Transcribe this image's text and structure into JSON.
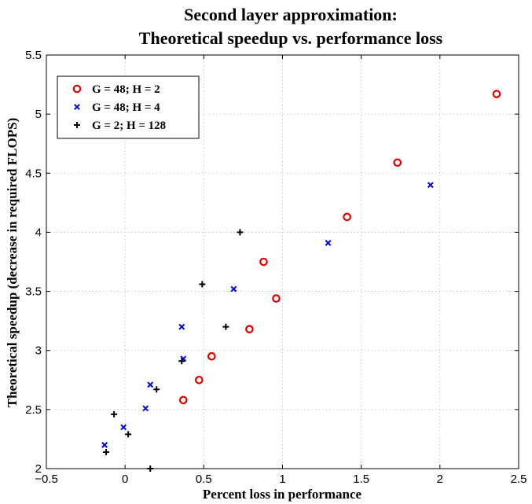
{
  "chart_data": {
    "type": "scatter",
    "title": [
      "Second layer approximation:",
      "Theoretical speedup vs. performance loss"
    ],
    "xlabel": "Percent loss in performance",
    "ylabel": "Theoretical speedup (decrease in required FLOPS)",
    "xlim": [
      -0.5,
      2.5
    ],
    "ylim": [
      2,
      5.5
    ],
    "xticks": [
      -0.5,
      0,
      0.5,
      1,
      1.5,
      2,
      2.5
    ],
    "xtick_labels": [
      "−0.5",
      "0",
      "0.5",
      "1",
      "1.5",
      "2",
      "2.5"
    ],
    "yticks": [
      2,
      2.5,
      3,
      3.5,
      4,
      4.5,
      5,
      5.5
    ],
    "ytick_labels": [
      "2",
      "2.5",
      "3",
      "3.5",
      "4",
      "4.5",
      "5",
      "5.5"
    ],
    "grid": true,
    "legend_position": "top-left",
    "series": [
      {
        "name": "G = 48; H = 2",
        "marker": "circle",
        "color": "#e00000",
        "points": [
          [
            0.37,
            2.58
          ],
          [
            0.47,
            2.75
          ],
          [
            0.55,
            2.95
          ],
          [
            0.79,
            3.18
          ],
          [
            0.96,
            3.44
          ],
          [
            0.88,
            3.75
          ],
          [
            1.41,
            4.13
          ],
          [
            1.73,
            4.59
          ],
          [
            2.36,
            5.17
          ]
        ]
      },
      {
        "name": "G = 48; H = 4",
        "marker": "x",
        "color": "#0000e0",
        "points": [
          [
            -0.13,
            2.2
          ],
          [
            -0.01,
            2.35
          ],
          [
            0.13,
            2.51
          ],
          [
            0.16,
            2.71
          ],
          [
            0.37,
            2.93
          ],
          [
            0.36,
            3.2
          ],
          [
            0.69,
            3.52
          ],
          [
            1.29,
            3.91
          ],
          [
            1.94,
            4.4
          ]
        ]
      },
      {
        "name": "G = 2; H = 128",
        "marker": "plus",
        "color": "#000000",
        "points": [
          [
            0.16,
            2.0
          ],
          [
            -0.12,
            2.14
          ],
          [
            0.02,
            2.29
          ],
          [
            -0.07,
            2.46
          ],
          [
            0.2,
            2.67
          ],
          [
            0.36,
            2.91
          ],
          [
            0.64,
            3.2
          ],
          [
            0.49,
            3.56
          ],
          [
            0.73,
            4.0
          ]
        ]
      }
    ]
  }
}
